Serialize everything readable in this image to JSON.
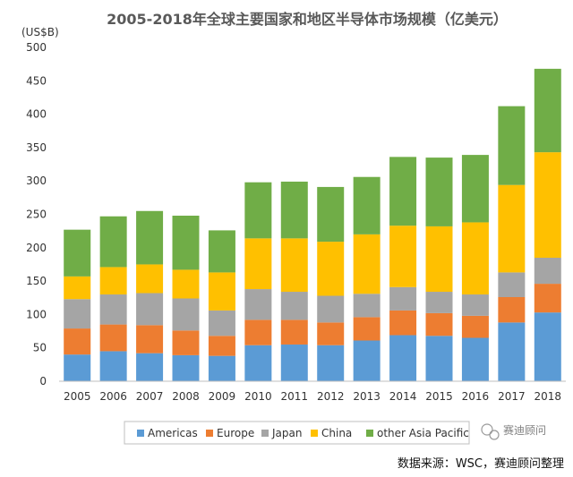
{
  "chart_data": {
    "type": "bar",
    "stacked": true,
    "title": "2005-2018年全球主要国家和地区半导体市场规模（亿美元）",
    "unit_label": "(US$B)",
    "categories": [
      "2005",
      "2006",
      "2007",
      "2008",
      "2009",
      "2010",
      "2011",
      "2012",
      "2013",
      "2014",
      "2015",
      "2016",
      "2017",
      "2018"
    ],
    "yticks": [
      0,
      50,
      100,
      150,
      200,
      250,
      300,
      350,
      400,
      450,
      500
    ],
    "ylim": [
      0,
      500
    ],
    "grid": false,
    "legend_position": "bottom",
    "series": [
      {
        "name": "Americas",
        "color": "#5B9BD5",
        "values": [
          40,
          45,
          42,
          39,
          38,
          54,
          55,
          54,
          61,
          69,
          68,
          65,
          88,
          103
        ]
      },
      {
        "name": "Europe",
        "color": "#ED7D31",
        "values": [
          39,
          40,
          42,
          37,
          30,
          38,
          37,
          34,
          35,
          37,
          34,
          33,
          38,
          43
        ]
      },
      {
        "name": "Japan",
        "color": "#A5A5A5",
        "values": [
          44,
          45,
          48,
          48,
          38,
          46,
          42,
          40,
          35,
          35,
          32,
          32,
          37,
          39
        ]
      },
      {
        "name": "China",
        "color": "#FFC000",
        "values": [
          34,
          41,
          43,
          43,
          57,
          76,
          80,
          81,
          89,
          92,
          98,
          108,
          131,
          158
        ]
      },
      {
        "name": "other Asia Pacific",
        "color": "#70AD47",
        "values": [
          70,
          76,
          80,
          81,
          63,
          84,
          85,
          82,
          86,
          103,
          103,
          101,
          118,
          125
        ]
      }
    ]
  },
  "source_text": "数据来源：WSC，赛迪顾问整理",
  "watermark_text": "赛迪顾问"
}
